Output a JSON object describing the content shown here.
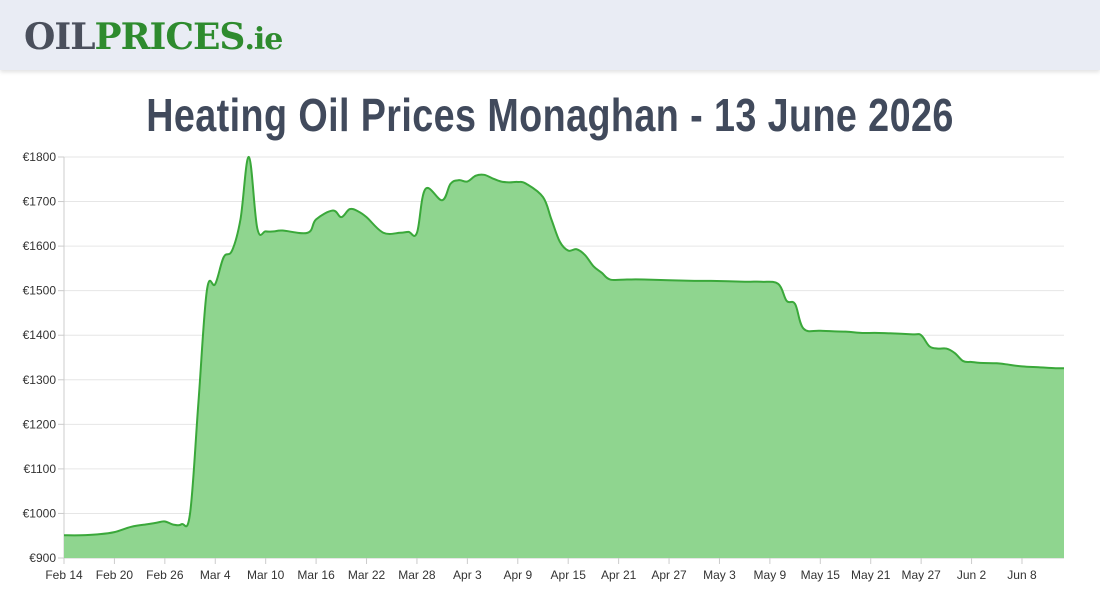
{
  "header": {
    "logo_oil": "OIL",
    "logo_prices": "PRICES",
    "logo_tld": ".ie"
  },
  "page_title": "Heating Oil Prices Monaghan - 13 June 2026",
  "chart_data": {
    "type": "area",
    "title": "Heating Oil Prices Monaghan - 13 June 2026",
    "xlabel": "",
    "ylabel": "",
    "ylim": [
      900,
      1800
    ],
    "y_ticks": [
      "€900",
      "€1000",
      "€1100",
      "€1200",
      "€1300",
      "€1400",
      "€1500",
      "€1600",
      "€1700",
      "€1800"
    ],
    "x_ticks": [
      "Feb 14",
      "Feb 20",
      "Feb 26",
      "Mar 4",
      "Mar 10",
      "Mar 16",
      "Mar 22",
      "Mar 28",
      "Apr 3",
      "Apr 9",
      "Apr 15",
      "Apr 21",
      "Apr 27",
      "May 3",
      "May 9",
      "May 15",
      "May 21",
      "May 27",
      "Jun 2",
      "Jun 8"
    ],
    "grid": true,
    "legend": "none",
    "series": [
      {
        "color": "#3aa83a",
        "fill": "#8fd58f",
        "x": [
          "Feb 14",
          "Feb 16",
          "Feb 18",
          "Feb 20",
          "Feb 22",
          "Feb 24",
          "Feb 25",
          "Feb 26",
          "Feb 27",
          "Feb 28",
          "Mar 1",
          "Mar 2",
          "Mar 3",
          "Mar 4",
          "Mar 5",
          "Mar 6",
          "Mar 7",
          "Mar 8",
          "Mar 9",
          "Mar 10",
          "Mar 11",
          "Mar 12",
          "Mar 15",
          "Mar 16",
          "Mar 18",
          "Mar 19",
          "Mar 20",
          "Mar 21",
          "Mar 22",
          "Mar 24",
          "Mar 26",
          "Mar 27",
          "Mar 28",
          "Mar 29",
          "Mar 31",
          "Apr 1",
          "Apr 2",
          "Apr 3",
          "Apr 4",
          "Apr 5",
          "Apr 6",
          "Apr 7",
          "Apr 8",
          "Apr 9",
          "Apr 10",
          "Apr 12",
          "Apr 13",
          "Apr 14",
          "Apr 15",
          "Apr 16",
          "Apr 17",
          "Apr 18",
          "Apr 19",
          "Apr 20",
          "Apr 22",
          "Apr 24",
          "Apr 30",
          "May 2",
          "May 6",
          "May 8",
          "May 10",
          "May 11",
          "May 12",
          "May 13",
          "May 15",
          "May 18",
          "May 20",
          "May 22",
          "May 26",
          "May 27",
          "May 28",
          "May 29",
          "May 30",
          "May 31",
          "Jun 1",
          "Jun 2",
          "Jun 3",
          "Jun 5",
          "Jun 6",
          "Jun 8",
          "Jun 10",
          "Jun 12",
          "Jun 13"
        ],
        "values": [
          951,
          951,
          953,
          958,
          970,
          976,
          979,
          982,
          975,
          976,
          1000,
          1250,
          1500,
          1515,
          1575,
          1590,
          1660,
          1800,
          1640,
          1633,
          1633,
          1635,
          1630,
          1660,
          1680,
          1665,
          1683,
          1678,
          1665,
          1630,
          1630,
          1632,
          1630,
          1728,
          1703,
          1740,
          1748,
          1745,
          1758,
          1760,
          1752,
          1745,
          1743,
          1744,
          1740,
          1710,
          1660,
          1610,
          1590,
          1593,
          1580,
          1555,
          1540,
          1525,
          1525,
          1525,
          1522,
          1522,
          1520,
          1520,
          1515,
          1477,
          1470,
          1415,
          1410,
          1408,
          1405,
          1405,
          1402,
          1400,
          1375,
          1370,
          1370,
          1360,
          1342,
          1340,
          1338,
          1337,
          1335,
          1330,
          1328,
          1326,
          1326
        ]
      }
    ]
  }
}
